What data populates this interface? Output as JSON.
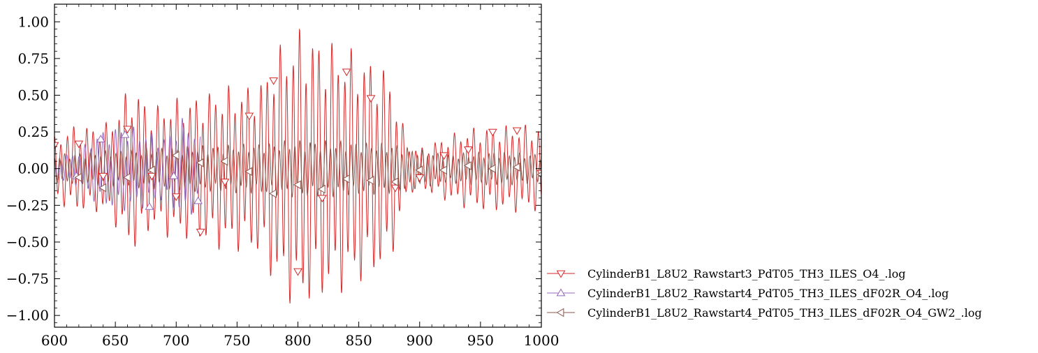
{
  "chart_data": {
    "type": "line",
    "title": "",
    "xlabel": "",
    "ylabel": "",
    "xlim": [
      600,
      1000
    ],
    "ylim": [
      -1.08,
      1.12
    ],
    "grid": false,
    "legend_position": "outside-bottom-right",
    "x_ticks": [
      600,
      650,
      700,
      750,
      800,
      850,
      900,
      950,
      1000
    ],
    "x_tick_labels": [
      "600",
      "650",
      "700",
      "750",
      "800",
      "850",
      "900",
      "950",
      "1000"
    ],
    "y_ticks": [
      -1.0,
      -0.75,
      -0.5,
      -0.25,
      0.0,
      0.25,
      0.5,
      0.75,
      1.0
    ],
    "y_tick_labels": [
      "−1.00",
      "−0.75",
      "−0.50",
      "−0.25",
      "0.00",
      "0.25",
      "0.50",
      "0.75",
      "1.00"
    ],
    "series": [
      {
        "name": "CylinderB1_L8U2_Rawstart3_PdT05_TH3_ILES_O4_.log",
        "color": "#d62728",
        "marker": "triangle-down",
        "x_range": [
          600,
          1000
        ],
        "period": 5.3,
        "envelope": [
          [
            600,
            0.22
          ],
          [
            615,
            0.3
          ],
          [
            630,
            0.3
          ],
          [
            645,
            0.32
          ],
          [
            660,
            0.55
          ],
          [
            665,
            0.58
          ],
          [
            680,
            0.42
          ],
          [
            695,
            0.48
          ],
          [
            715,
            0.5
          ],
          [
            735,
            0.56
          ],
          [
            760,
            0.58
          ],
          [
            770,
            0.62
          ],
          [
            780,
            0.8
          ],
          [
            800,
            0.98
          ],
          [
            820,
            0.9
          ],
          [
            840,
            0.84
          ],
          [
            860,
            0.76
          ],
          [
            875,
            0.68
          ],
          [
            882,
            0.45
          ],
          [
            890,
            0.18
          ],
          [
            900,
            0.14
          ],
          [
            920,
            0.22
          ],
          [
            940,
            0.28
          ],
          [
            960,
            0.3
          ],
          [
            980,
            0.3
          ],
          [
            1000,
            0.3
          ]
        ],
        "markers": [
          [
            600,
            0.16
          ],
          [
            620,
            0.17
          ],
          [
            640,
            -0.05
          ],
          [
            660,
            0.27
          ],
          [
            680,
            -0.05
          ],
          [
            700,
            -0.19
          ],
          [
            720,
            -0.43
          ],
          [
            740,
            -0.09
          ],
          [
            760,
            0.36
          ],
          [
            780,
            0.6
          ],
          [
            800,
            -0.7
          ],
          [
            820,
            -0.2
          ],
          [
            840,
            0.66
          ],
          [
            860,
            0.48
          ],
          [
            880,
            -0.13
          ],
          [
            900,
            -0.06
          ],
          [
            920,
            0.09
          ],
          [
            940,
            0.13
          ],
          [
            960,
            0.25
          ],
          [
            980,
            0.26
          ],
          [
            1000,
            -0.03
          ]
        ]
      },
      {
        "name": "CylinderB1_L8U2_Rawstart4_PdT05_TH3_ILES_dF02R_O4_.log",
        "color": "#9467bd",
        "marker": "triangle-up",
        "x_range": [
          600,
          720
        ],
        "period": 5.0,
        "envelope": [
          [
            600,
            0.08
          ],
          [
            620,
            0.12
          ],
          [
            635,
            0.25
          ],
          [
            655,
            0.3
          ],
          [
            670,
            0.28
          ],
          [
            690,
            0.22
          ],
          [
            705,
            0.35
          ],
          [
            712,
            0.32
          ],
          [
            720,
            0.22
          ]
        ],
        "markers": [
          [
            618,
            -0.05
          ],
          [
            638,
            0.2
          ],
          [
            658,
            0.23
          ],
          [
            678,
            -0.26
          ],
          [
            698,
            -0.05
          ],
          [
            718,
            -0.22
          ]
        ]
      },
      {
        "name": "CylinderB1_L8U2_Rawstart4_PdT05_TH3_ILES_dF02R_O4_GW2_.log",
        "color": "#8c564b",
        "marker": "triangle-left",
        "x_range": [
          600,
          1000
        ],
        "period": 4.2,
        "envelope": [
          [
            600,
            0.1
          ],
          [
            640,
            0.12
          ],
          [
            680,
            0.14
          ],
          [
            720,
            0.16
          ],
          [
            760,
            0.17
          ],
          [
            800,
            0.2
          ],
          [
            840,
            0.19
          ],
          [
            880,
            0.17
          ],
          [
            920,
            0.1
          ],
          [
            960,
            0.12
          ],
          [
            1000,
            0.1
          ]
        ],
        "markers": [
          [
            620,
            -0.06
          ],
          [
            640,
            -0.13
          ],
          [
            660,
            -0.06
          ],
          [
            680,
            -0.01
          ],
          [
            700,
            0.09
          ],
          [
            720,
            0.04
          ],
          [
            740,
            0.05
          ],
          [
            760,
            -0.02
          ],
          [
            780,
            -0.17
          ],
          [
            800,
            -0.11
          ],
          [
            820,
            -0.14
          ],
          [
            840,
            -0.07
          ],
          [
            860,
            -0.08
          ],
          [
            880,
            -0.09
          ],
          [
            900,
            -0.01
          ],
          [
            920,
            -0.01
          ],
          [
            940,
            0.02
          ],
          [
            960,
            0.0
          ],
          [
            980,
            0.01
          ],
          [
            1000,
            -0.04
          ]
        ]
      }
    ]
  }
}
